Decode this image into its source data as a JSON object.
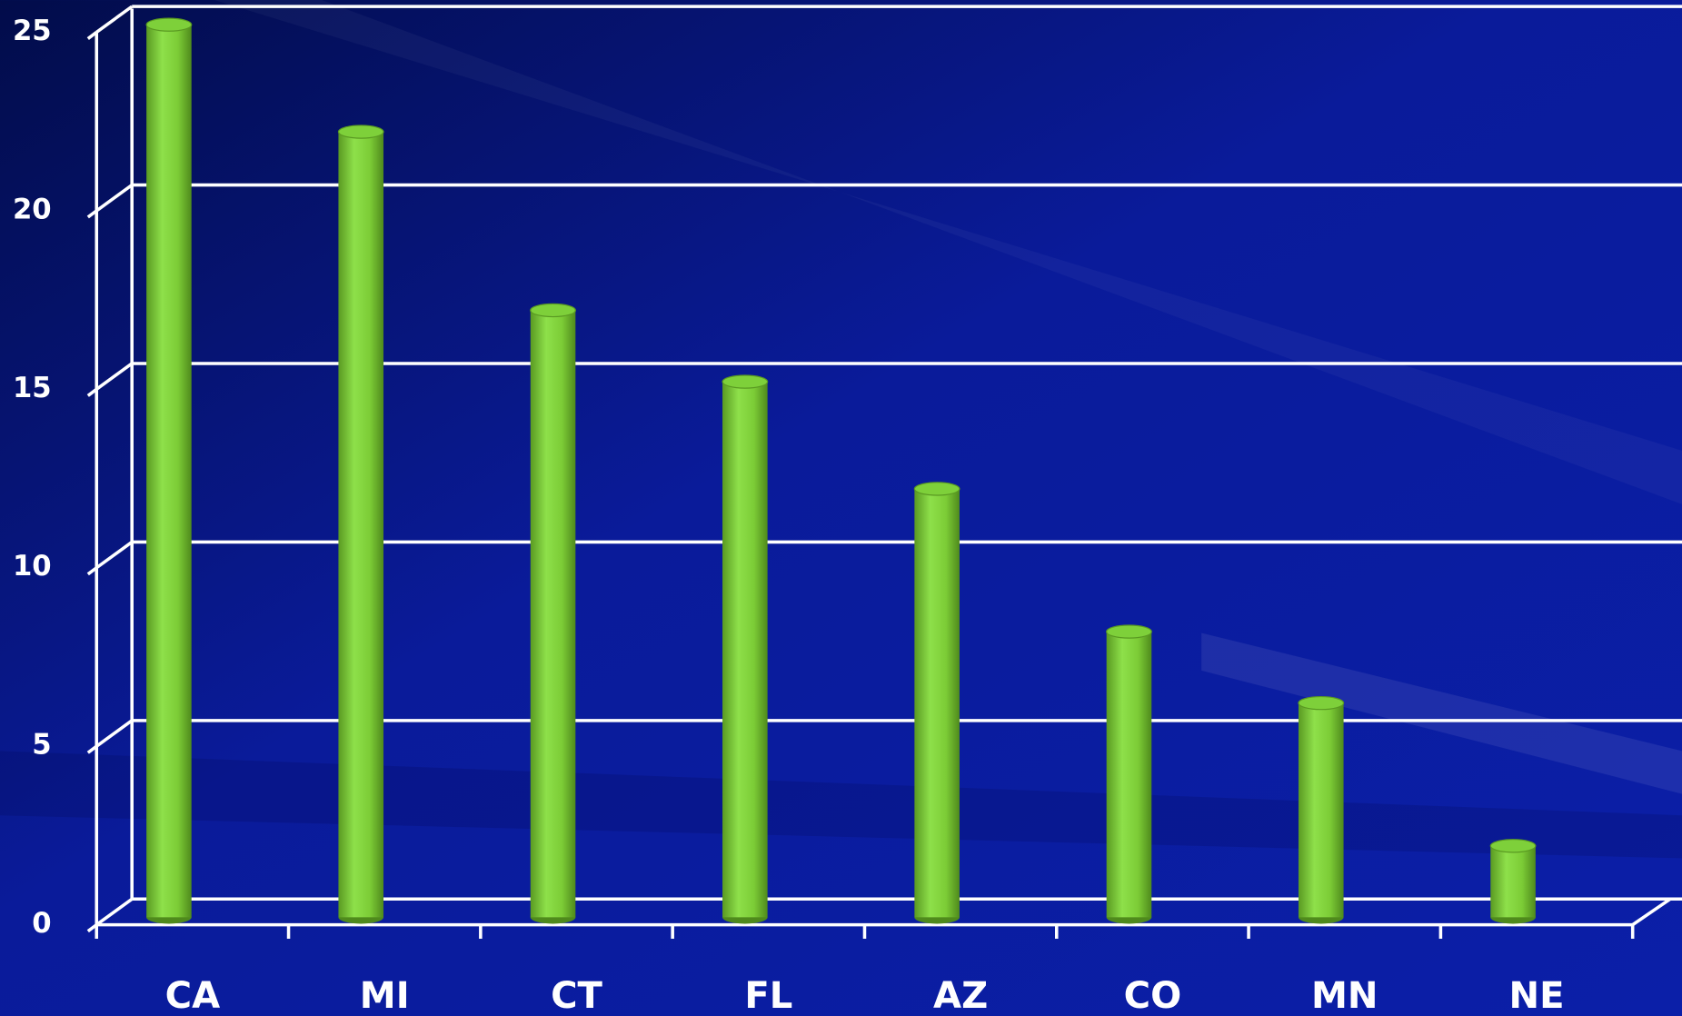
{
  "chart_data": {
    "type": "bar",
    "categories": [
      "CA",
      "MI",
      "CT",
      "FL",
      "AZ",
      "CO",
      "MN",
      "NE"
    ],
    "values": [
      25,
      22,
      17,
      15,
      12,
      8,
      6,
      2
    ],
    "color": "#7ed03a",
    "ylim": [
      0,
      25
    ],
    "yticks": [
      0,
      5,
      10,
      15,
      20,
      25
    ],
    "grid": true
  }
}
